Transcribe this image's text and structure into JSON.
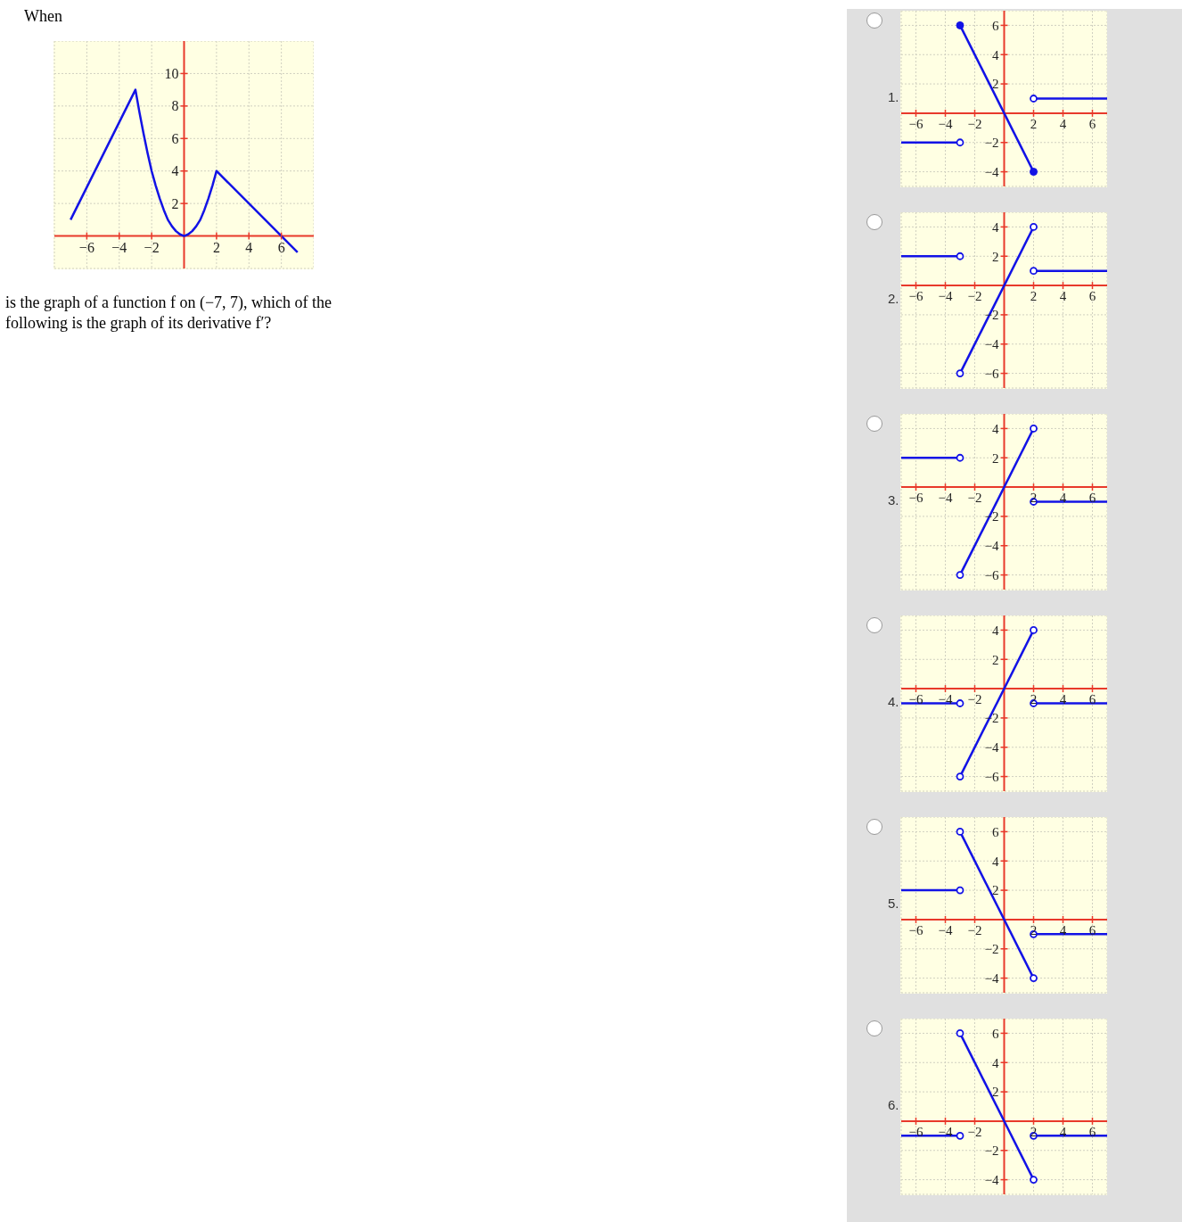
{
  "chart_data": [
    {
      "type": "line",
      "annotations": [
        "When",
        "is the graph of a function f on (−7, 7), which of the following is the graph of its derivative f′?"
      ],
      "xlim": [
        -8,
        8
      ],
      "ylim": [
        -2,
        12
      ],
      "xticks": [
        {
          "value": -6,
          "label": "−6"
        },
        {
          "value": -4,
          "label": "−4"
        },
        {
          "value": -2,
          "label": "−2"
        },
        2,
        4,
        6
      ],
      "yticks": [
        2,
        4,
        6,
        8,
        10
      ],
      "grid": true,
      "line_style": "solid",
      "marker": "none",
      "series": [
        {
          "color": "#1212e6",
          "x": [
            -7,
            -3,
            -2.75,
            -2.5,
            -2.25,
            -2,
            -1.75,
            -1.5,
            -1.25,
            -1,
            -0.75,
            -0.5,
            -0.25,
            0,
            0.25,
            0.5,
            0.75,
            1,
            1.25,
            1.5,
            1.75,
            2,
            7
          ],
          "values": [
            1,
            9,
            7.6,
            6.3,
            5.1,
            4,
            3.1,
            2.3,
            1.6,
            1,
            0.6,
            0.3,
            0.1,
            0,
            0.1,
            0.3,
            0.6,
            1,
            1.6,
            2.3,
            3.1,
            4,
            -1
          ]
        }
      ]
    },
    {
      "type": "line",
      "title": "1.",
      "xlim": [
        -7,
        7
      ],
      "ylim": [
        -5,
        7
      ],
      "xticks": [
        {
          "value": -6,
          "label": "−6"
        },
        {
          "value": -4,
          "label": "−4"
        },
        {
          "value": -2,
          "label": "−2"
        },
        2,
        4,
        6
      ],
      "yticks": [
        {
          "value": -4,
          "label": "−4"
        },
        {
          "value": -2,
          "label": "−2"
        },
        2,
        4,
        6
      ],
      "grid": true,
      "line_style": "solid",
      "series": [
        {
          "color": "#1212e6",
          "x": [
            -7,
            -3
          ],
          "values": [
            -2,
            -2
          ],
          "marker": "none"
        },
        {
          "color": "#1212e6",
          "x": [
            -3,
            2
          ],
          "values": [
            6,
            -4
          ],
          "marker": "circle"
        },
        {
          "color": "#1212e6",
          "x": [
            2,
            7
          ],
          "values": [
            1,
            1
          ],
          "marker": "none"
        },
        {
          "color": "#1212e6",
          "type": "scatter",
          "x": [
            -3,
            2
          ],
          "values": [
            -2,
            1
          ],
          "marker": "circle"
        }
      ]
    },
    {
      "type": "line",
      "title": "2.",
      "xlim": [
        -7,
        7
      ],
      "ylim": [
        -7,
        5
      ],
      "xticks": [
        {
          "value": -6,
          "label": "−6"
        },
        {
          "value": -4,
          "label": "−4"
        },
        {
          "value": -2,
          "label": "−2"
        },
        2,
        4,
        6
      ],
      "yticks": [
        {
          "value": -6,
          "label": "−6"
        },
        {
          "value": -4,
          "label": "−4"
        },
        {
          "value": -2,
          "label": "−2"
        },
        2,
        4
      ],
      "grid": true,
      "line_style": "solid",
      "series": [
        {
          "color": "#1212e6",
          "x": [
            -7,
            -3
          ],
          "values": [
            2,
            2
          ],
          "marker": "none"
        },
        {
          "color": "#1212e6",
          "x": [
            -3,
            2
          ],
          "values": [
            -6,
            4
          ],
          "marker": "none"
        },
        {
          "color": "#1212e6",
          "x": [
            2,
            7
          ],
          "values": [
            1,
            1
          ],
          "marker": "none"
        },
        {
          "color": "#1212e6",
          "type": "scatter",
          "x": [
            -3,
            -3,
            2,
            2
          ],
          "values": [
            2,
            -6,
            4,
            1
          ],
          "marker": "circle"
        }
      ]
    },
    {
      "type": "line",
      "title": "3.",
      "xlim": [
        -7,
        7
      ],
      "ylim": [
        -7,
        5
      ],
      "xticks": [
        {
          "value": -6,
          "label": "−6"
        },
        {
          "value": -4,
          "label": "−4"
        },
        {
          "value": -2,
          "label": "−2"
        },
        2,
        4,
        6
      ],
      "yticks": [
        {
          "value": -6,
          "label": "−6"
        },
        {
          "value": -4,
          "label": "−4"
        },
        {
          "value": -2,
          "label": "−2"
        },
        2,
        4
      ],
      "grid": true,
      "line_style": "solid",
      "series": [
        {
          "color": "#1212e6",
          "x": [
            -7,
            -3
          ],
          "values": [
            2,
            2
          ],
          "marker": "none"
        },
        {
          "color": "#1212e6",
          "x": [
            -3,
            2
          ],
          "values": [
            -6,
            4
          ],
          "marker": "none"
        },
        {
          "color": "#1212e6",
          "x": [
            2,
            7
          ],
          "values": [
            -1,
            -1
          ],
          "marker": "none"
        },
        {
          "color": "#1212e6",
          "type": "scatter",
          "x": [
            -3,
            -3,
            2,
            2
          ],
          "values": [
            2,
            -6,
            4,
            -1
          ],
          "marker": "circle"
        }
      ]
    },
    {
      "type": "line",
      "title": "4.",
      "xlim": [
        -7,
        7
      ],
      "ylim": [
        -7,
        5
      ],
      "xticks": [
        {
          "value": -6,
          "label": "−6"
        },
        {
          "value": -4,
          "label": "−4"
        },
        {
          "value": -2,
          "label": "−2"
        },
        2,
        4,
        6
      ],
      "yticks": [
        {
          "value": -6,
          "label": "−6"
        },
        {
          "value": -4,
          "label": "−4"
        },
        {
          "value": -2,
          "label": "−2"
        },
        2,
        4
      ],
      "grid": true,
      "line_style": "solid",
      "series": [
        {
          "color": "#1212e6",
          "x": [
            -7,
            -3
          ],
          "values": [
            -1,
            -1
          ],
          "marker": "none"
        },
        {
          "color": "#1212e6",
          "x": [
            -3,
            2
          ],
          "values": [
            -6,
            4
          ],
          "marker": "none"
        },
        {
          "color": "#1212e6",
          "x": [
            2,
            7
          ],
          "values": [
            -1,
            -1
          ],
          "marker": "none"
        },
        {
          "color": "#1212e6",
          "type": "scatter",
          "x": [
            -3,
            -3,
            2,
            2
          ],
          "values": [
            -1,
            -6,
            4,
            -1
          ],
          "marker": "circle"
        }
      ]
    },
    {
      "type": "line",
      "title": "5.",
      "xlim": [
        -7,
        7
      ],
      "ylim": [
        -5,
        7
      ],
      "xticks": [
        {
          "value": -6,
          "label": "−6"
        },
        {
          "value": -4,
          "label": "−4"
        },
        {
          "value": -2,
          "label": "−2"
        },
        2,
        4,
        6
      ],
      "yticks": [
        {
          "value": -4,
          "label": "−4"
        },
        {
          "value": -2,
          "label": "−2"
        },
        2,
        4,
        6
      ],
      "grid": true,
      "line_style": "solid",
      "series": [
        {
          "color": "#1212e6",
          "x": [
            -7,
            -3
          ],
          "values": [
            2,
            2
          ],
          "marker": "none"
        },
        {
          "color": "#1212e6",
          "x": [
            -3,
            2
          ],
          "values": [
            6,
            -4
          ],
          "marker": "none"
        },
        {
          "color": "#1212e6",
          "x": [
            2,
            7
          ],
          "values": [
            -1,
            -1
          ],
          "marker": "none"
        },
        {
          "color": "#1212e6",
          "type": "scatter",
          "x": [
            -3,
            -3,
            2,
            2
          ],
          "values": [
            2,
            6,
            -4,
            -1
          ],
          "marker": "circle"
        }
      ]
    },
    {
      "type": "line",
      "title": "6.",
      "xlim": [
        -7,
        7
      ],
      "ylim": [
        -5,
        7
      ],
      "xticks": [
        {
          "value": -6,
          "label": "−6"
        },
        {
          "value": -4,
          "label": "−4"
        },
        {
          "value": -2,
          "label": "−2"
        },
        2,
        4,
        6
      ],
      "yticks": [
        {
          "value": -4,
          "label": "−4"
        },
        {
          "value": -2,
          "label": "−2"
        },
        2,
        4,
        6
      ],
      "grid": true,
      "line_style": "solid",
      "series": [
        {
          "color": "#1212e6",
          "x": [
            -7,
            -3
          ],
          "values": [
            -1,
            -1
          ],
          "marker": "none"
        },
        {
          "color": "#1212e6",
          "x": [
            -3,
            2
          ],
          "values": [
            6,
            -4
          ],
          "marker": "none"
        },
        {
          "color": "#1212e6",
          "x": [
            2,
            7
          ],
          "values": [
            -1,
            -1
          ],
          "marker": "none"
        },
        {
          "color": "#1212e6",
          "type": "scatter",
          "x": [
            -3,
            -3,
            2,
            2
          ],
          "values": [
            -1,
            6,
            -4,
            -1
          ],
          "marker": "circle"
        }
      ]
    }
  ]
}
